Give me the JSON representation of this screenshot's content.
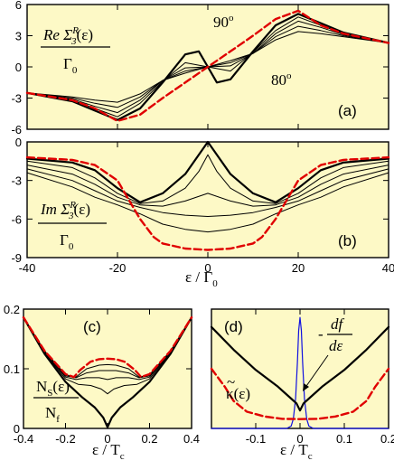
{
  "chart_data": [
    {
      "panel": "a",
      "type": "line",
      "tag": "(a)",
      "ylabel_top": "Re Σ",
      "ylabel_sup": "R",
      "ylabel_sub": "3",
      "ylabel_arg": "(ε)",
      "ylabel_den": "Γ",
      "ylabel_den_sub": "0",
      "annotation_hi": "90",
      "annotation_lo": "80",
      "annotation_deg": "o",
      "xlim": [
        -40,
        40
      ],
      "ylim": [
        -6,
        6
      ],
      "xticks": [
        -40,
        -20,
        0,
        20,
        40
      ],
      "yticks": [
        -6,
        -3,
        0,
        3,
        6
      ],
      "ytick_labels": [
        "-6",
        "-3",
        "0",
        "3",
        "6"
      ],
      "series": [
        {
          "style": "red-dashed",
          "x": [
            -40,
            -30,
            -25,
            -20,
            -15,
            -10,
            -5,
            0,
            5,
            10,
            15,
            20,
            25,
            30,
            40
          ],
          "y": [
            -2.5,
            -3.2,
            -4.0,
            -5.2,
            -4.6,
            -3.0,
            -1.5,
            0,
            1.5,
            3.0,
            4.6,
            5.4,
            4.0,
            3.2,
            2.3
          ]
        },
        {
          "style": "thick",
          "x": [
            -40,
            -30,
            -25,
            -20,
            -15,
            -10,
            -5,
            -2,
            0,
            2,
            5,
            10,
            15,
            20,
            25,
            30,
            40
          ],
          "y": [
            -2.5,
            -3.3,
            -4.2,
            -5.1,
            -4.0,
            -1.5,
            1.2,
            1.5,
            0,
            -1.5,
            -1.2,
            1.5,
            4.0,
            5.1,
            4.2,
            3.3,
            2.3
          ]
        },
        {
          "style": "thin",
          "x": [
            -40,
            -30,
            -25,
            -20,
            -15,
            -10,
            -5,
            0,
            5,
            10,
            15,
            20,
            25,
            30,
            40
          ],
          "y": [
            -2.5,
            -3.2,
            -4.0,
            -4.8,
            -3.5,
            -1.4,
            0.4,
            0,
            -0.4,
            1.4,
            3.5,
            4.8,
            4.0,
            3.2,
            2.3
          ]
        },
        {
          "style": "thin",
          "x": [
            -40,
            -30,
            -25,
            -20,
            -15,
            -10,
            -5,
            0,
            5,
            10,
            15,
            20,
            25,
            30,
            40
          ],
          "y": [
            -2.5,
            -3.1,
            -3.8,
            -4.4,
            -3.2,
            -1.3,
            -0.1,
            0,
            0.1,
            1.3,
            3.2,
            4.4,
            3.8,
            3.1,
            2.3
          ]
        },
        {
          "style": "thin",
          "x": [
            -40,
            -30,
            -25,
            -20,
            -15,
            -10,
            -5,
            0,
            5,
            10,
            15,
            20,
            25,
            30,
            40
          ],
          "y": [
            -2.5,
            -3.0,
            -3.5,
            -3.9,
            -2.9,
            -1.3,
            -0.4,
            0,
            0.4,
            1.3,
            2.9,
            3.9,
            3.5,
            3.0,
            2.3
          ]
        },
        {
          "style": "thin",
          "x": [
            -40,
            -30,
            -25,
            -20,
            -15,
            -10,
            -5,
            0,
            5,
            10,
            15,
            20,
            25,
            30,
            40
          ],
          "y": [
            -2.5,
            -2.9,
            -3.2,
            -3.4,
            -2.6,
            -1.3,
            -0.6,
            0,
            0.6,
            1.3,
            2.6,
            3.4,
            3.2,
            2.9,
            2.3
          ]
        }
      ]
    },
    {
      "panel": "b",
      "type": "line",
      "tag": "(b)",
      "ylabel_top": "Im Σ",
      "ylabel_sup": "R",
      "ylabel_sub": "3",
      "ylabel_arg": "(ε)",
      "ylabel_den": "Γ",
      "ylabel_den_sub": "0",
      "xlabel": "ε / Γ",
      "xlabel_sub": "0",
      "xlim": [
        -40,
        40
      ],
      "ylim": [
        -9,
        0
      ],
      "xticks": [
        -40,
        -20,
        0,
        20,
        40
      ],
      "xtick_labels": [
        "-40",
        "-20",
        "0",
        "20",
        "40"
      ],
      "yticks": [
        -9,
        -6,
        -3,
        0
      ],
      "ytick_labels": [
        "-9",
        "-6",
        "-3",
        "0"
      ],
      "series": [
        {
          "style": "red-dashed",
          "x": [
            -40,
            -30,
            -25,
            -20,
            -17,
            -15,
            -12,
            -10,
            -5,
            0,
            5,
            10,
            12,
            15,
            17,
            20,
            25,
            30,
            40
          ],
          "y": [
            -1.2,
            -1.4,
            -1.8,
            -3.0,
            -4.8,
            -6.0,
            -7.4,
            -7.9,
            -8.3,
            -8.4,
            -8.3,
            -7.9,
            -7.4,
            -6.0,
            -4.8,
            -3.0,
            -1.8,
            -1.4,
            -1.2
          ]
        },
        {
          "style": "thick",
          "x": [
            -40,
            -30,
            -25,
            -20,
            -15,
            -10,
            -5,
            -2,
            0,
            2,
            5,
            10,
            15,
            20,
            25,
            30,
            40
          ],
          "y": [
            -1.3,
            -1.6,
            -2.2,
            -3.6,
            -4.7,
            -4.0,
            -2.5,
            -1.0,
            0,
            -1.0,
            -2.5,
            -4.0,
            -4.7,
            -3.6,
            -2.2,
            -1.6,
            -1.3
          ]
        },
        {
          "style": "thin",
          "x": [
            -40,
            -30,
            -25,
            -20,
            -15,
            -10,
            -5,
            -2,
            0,
            2,
            5,
            10,
            15,
            20,
            25,
            30,
            40
          ],
          "y": [
            -1.5,
            -2.0,
            -2.8,
            -4.0,
            -4.8,
            -4.6,
            -3.6,
            -2.3,
            -1.0,
            -2.3,
            -3.6,
            -4.6,
            -4.8,
            -4.0,
            -2.8,
            -2.0,
            -1.5
          ]
        },
        {
          "style": "thin",
          "x": [
            -40,
            -30,
            -25,
            -20,
            -15,
            -10,
            -5,
            0,
            5,
            10,
            15,
            20,
            25,
            30,
            40
          ],
          "y": [
            -1.8,
            -2.5,
            -3.3,
            -4.3,
            -4.9,
            -5.0,
            -4.6,
            -4.0,
            -4.6,
            -5.0,
            -4.9,
            -4.3,
            -3.3,
            -2.5,
            -1.8
          ]
        },
        {
          "style": "thin",
          "x": [
            -40,
            -30,
            -25,
            -20,
            -15,
            -10,
            -5,
            0,
            5,
            10,
            15,
            20,
            25,
            30,
            40
          ],
          "y": [
            -2.1,
            -3.0,
            -3.8,
            -4.6,
            -5.1,
            -5.5,
            -5.7,
            -5.8,
            -5.7,
            -5.5,
            -5.1,
            -4.6,
            -3.8,
            -3.0,
            -2.1
          ]
        },
        {
          "style": "thin",
          "x": [
            -40,
            -30,
            -25,
            -20,
            -15,
            -10,
            -5,
            0,
            5,
            10,
            15,
            20,
            25,
            30,
            40
          ],
          "y": [
            -2.4,
            -3.5,
            -4.3,
            -4.9,
            -5.6,
            -6.4,
            -6.8,
            -7.0,
            -6.8,
            -6.4,
            -5.6,
            -4.9,
            -4.3,
            -3.5,
            -2.4
          ]
        }
      ]
    },
    {
      "panel": "c",
      "type": "line",
      "tag": "(c)",
      "ylabel_num": "N",
      "ylabel_num_sub": "S",
      "ylabel_num_arg": "(ε)",
      "ylabel_den": "N",
      "ylabel_den_sub": "f",
      "xlabel": "ε / T",
      "xlabel_sub": "c",
      "xlim": [
        -0.4,
        0.4
      ],
      "ylim": [
        0,
        0.2
      ],
      "xticks": [
        -0.4,
        -0.2,
        0,
        0.2,
        0.4
      ],
      "xtick_labels": [
        "-0.4",
        "-0.2",
        "0",
        "0.2",
        "0.4"
      ],
      "yticks": [
        0,
        0.1,
        0.2
      ],
      "ytick_labels": [
        "0",
        "0.1",
        "0.2"
      ],
      "series": [
        {
          "style": "red-dashed",
          "x": [
            -0.4,
            -0.3,
            -0.2,
            -0.16,
            -0.13,
            -0.08,
            -0.04,
            0,
            0.04,
            0.08,
            0.13,
            0.16,
            0.2,
            0.3,
            0.4
          ],
          "y": [
            0.186,
            0.13,
            0.091,
            0.086,
            0.098,
            0.112,
            0.116,
            0.117,
            0.116,
            0.112,
            0.098,
            0.086,
            0.091,
            0.13,
            0.186
          ]
        },
        {
          "style": "thick",
          "x": [
            -0.4,
            -0.3,
            -0.2,
            -0.12,
            -0.06,
            -0.02,
            0,
            0.02,
            0.06,
            0.12,
            0.2,
            0.3,
            0.4
          ],
          "y": [
            0.186,
            0.125,
            0.078,
            0.052,
            0.035,
            0.018,
            0.002,
            0.018,
            0.035,
            0.052,
            0.078,
            0.125,
            0.186
          ]
        },
        {
          "style": "thin",
          "x": [
            -0.4,
            -0.3,
            -0.2,
            -0.14,
            -0.08,
            -0.03,
            0,
            0.03,
            0.08,
            0.14,
            0.2,
            0.3,
            0.4
          ],
          "y": [
            0.186,
            0.127,
            0.083,
            0.074,
            0.072,
            0.066,
            0.058,
            0.066,
            0.072,
            0.074,
            0.083,
            0.127,
            0.186
          ]
        },
        {
          "style": "thin",
          "x": [
            -0.4,
            -0.3,
            -0.2,
            -0.15,
            -0.1,
            -0.04,
            0,
            0.04,
            0.1,
            0.15,
            0.2,
            0.3,
            0.4
          ],
          "y": [
            0.186,
            0.128,
            0.086,
            0.082,
            0.085,
            0.085,
            0.082,
            0.085,
            0.085,
            0.082,
            0.086,
            0.128,
            0.186
          ]
        },
        {
          "style": "thin",
          "x": [
            -0.4,
            -0.3,
            -0.2,
            -0.15,
            -0.1,
            -0.04,
            0,
            0.04,
            0.1,
            0.15,
            0.2,
            0.3,
            0.4
          ],
          "y": [
            0.186,
            0.129,
            0.088,
            0.085,
            0.093,
            0.097,
            0.097,
            0.097,
            0.093,
            0.085,
            0.088,
            0.129,
            0.186
          ]
        },
        {
          "style": "thin",
          "x": [
            -0.4,
            -0.3,
            -0.2,
            -0.15,
            -0.1,
            -0.04,
            0,
            0.04,
            0.1,
            0.15,
            0.2,
            0.3,
            0.4
          ],
          "y": [
            0.186,
            0.13,
            0.09,
            0.086,
            0.1,
            0.106,
            0.107,
            0.106,
            0.1,
            0.086,
            0.09,
            0.13,
            0.186
          ]
        }
      ]
    },
    {
      "panel": "d",
      "type": "line",
      "tag": "(d)",
      "label_df_num": "df",
      "label_df_den": "dε",
      "label_df_sign": "-",
      "label_kappa": "κ(ε)",
      "label_kappa_tilde": "~",
      "xlabel": "ε / T",
      "xlabel_sub": "c",
      "xlim": [
        -0.2,
        0.2
      ],
      "ylim": [
        0,
        1
      ],
      "xticks": [
        -0.1,
        0,
        0.1,
        0.2
      ],
      "xtick_labels": [
        "-0.1",
        "0",
        "0.1",
        "0.2"
      ],
      "series": [
        {
          "style": "thick",
          "x": [
            -0.2,
            -0.15,
            -0.1,
            -0.05,
            -0.02,
            -0.008,
            0,
            0.008,
            0.02,
            0.05,
            0.1,
            0.15,
            0.2
          ],
          "y": [
            0.85,
            0.66,
            0.49,
            0.35,
            0.25,
            0.21,
            0.15,
            0.21,
            0.25,
            0.35,
            0.49,
            0.66,
            0.85
          ]
        },
        {
          "style": "red-dashed",
          "x": [
            -0.2,
            -0.17,
            -0.15,
            -0.12,
            -0.08,
            -0.04,
            0,
            0.04,
            0.08,
            0.12,
            0.15,
            0.17,
            0.2
          ],
          "y": [
            0.5,
            0.35,
            0.23,
            0.14,
            0.1,
            0.08,
            0.078,
            0.08,
            0.1,
            0.14,
            0.23,
            0.35,
            0.5
          ]
        },
        {
          "style": "blue",
          "x": [
            -0.2,
            -0.03,
            -0.02,
            -0.015,
            -0.01,
            -0.006,
            -0.003,
            0,
            0.003,
            0.006,
            0.01,
            0.015,
            0.02,
            0.03,
            0.2
          ],
          "y": [
            0,
            0,
            0.02,
            0.08,
            0.25,
            0.55,
            0.82,
            0.93,
            0.82,
            0.55,
            0.25,
            0.08,
            0.02,
            0,
            0
          ]
        }
      ]
    }
  ]
}
